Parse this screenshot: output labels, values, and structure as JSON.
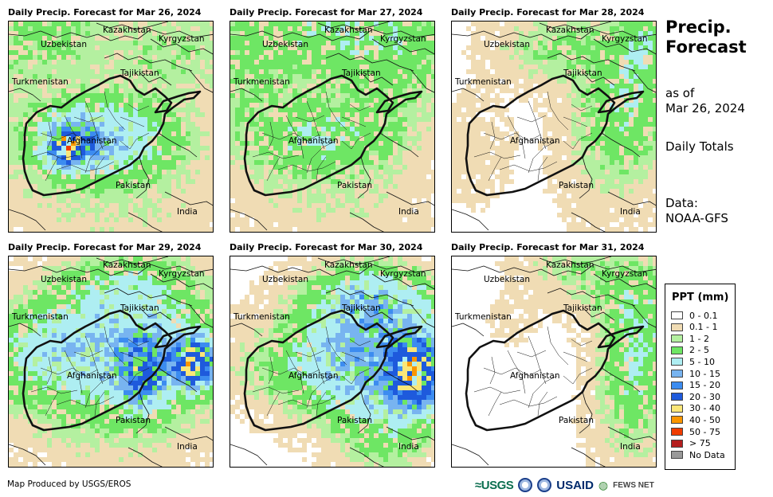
{
  "panels": [
    {
      "title": "Daily Precip. Forecast for Mar 26, 2024",
      "pattern": "d26"
    },
    {
      "title": "Daily Precip. Forecast for Mar 27, 2024",
      "pattern": "d27"
    },
    {
      "title": "Daily Precip. Forecast for Mar 28, 2024",
      "pattern": "d28"
    },
    {
      "title": "Daily Precip. Forecast for Mar 29, 2024",
      "pattern": "d29"
    },
    {
      "title": "Daily Precip. Forecast for Mar 30, 2024",
      "pattern": "d30"
    },
    {
      "title": "Daily Precip. Forecast for Mar 31, 2024",
      "pattern": "d31"
    }
  ],
  "map_labels": {
    "kazakhstan": "Kazakhstan",
    "kyrgyzstan": "Kyrgyzstan",
    "uzbekistan": "Uzbekistan",
    "tajikistan": "Tajikistan",
    "turkmenistan": "Turkmenistan",
    "afghanistan": "Afghanistan",
    "pakistan": "Pakistan",
    "india": "India"
  },
  "sidebar": {
    "title_line1": "Precip.",
    "title_line2": "Forecast",
    "asof_line1": "as of",
    "asof_line2": "Mar 26, 2024",
    "totals": "Daily Totals",
    "data_line1": "Data:",
    "data_line2": "NOAA-GFS"
  },
  "legend": {
    "title": "PPT (mm)",
    "items": [
      {
        "label": "0 - 0.1",
        "color": "#ffffff"
      },
      {
        "label": "0.1 - 1",
        "color": "#f0dcb4"
      },
      {
        "label": "1 - 2",
        "color": "#b4f0a0"
      },
      {
        "label": "2 - 5",
        "color": "#6ee664"
      },
      {
        "label": "5 - 10",
        "color": "#aeeef2"
      },
      {
        "label": "10 - 15",
        "color": "#78b4f0"
      },
      {
        "label": "15 - 20",
        "color": "#3c8cf0"
      },
      {
        "label": "20 - 30",
        "color": "#1e5adc"
      },
      {
        "label": "30 - 40",
        "color": "#fae678"
      },
      {
        "label": "40 - 50",
        "color": "#fa9600"
      },
      {
        "label": "50 - 75",
        "color": "#f03c00"
      },
      {
        "label": "> 75",
        "color": "#b41e1e"
      },
      {
        "label": "No Data",
        "color": "#999999"
      }
    ]
  },
  "footer": {
    "credit": "Map Produced by USGS/EROS",
    "logo_usgs": "≈USGS",
    "logo_usaid": "USAID",
    "logo_fews": "FEWS NET"
  }
}
